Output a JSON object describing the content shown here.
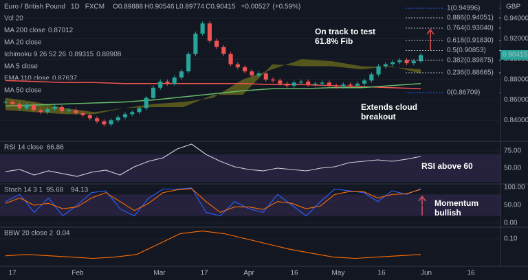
{
  "header": {
    "symbol": "Euro / British Pound",
    "interval": "1D",
    "source": "FXCM",
    "ohlc": [
      {
        "label": "O",
        "value": 0.89888
      },
      {
        "label": "H",
        "value": 0.90546
      },
      {
        "label": "L",
        "value": 0.89774
      },
      {
        "label": "C",
        "value": 0.90415
      }
    ],
    "change": "+0.00527",
    "change_pct": "(+0.59%)",
    "currency": "GBP"
  },
  "legend": [
    {
      "name": "Vol 20",
      "values": [],
      "active": false
    },
    {
      "name": "MA 200 close",
      "values": [
        0.87012
      ],
      "active": true,
      "color": "#f05350"
    },
    {
      "name": "MA 20 close",
      "values": [],
      "active": false
    },
    {
      "name": "Ichimoku 9 26 52 26",
      "values": [
        0.89315,
        0.88908
      ],
      "active": true,
      "color": "#f05350"
    },
    {
      "name": "MA 5 close",
      "values": [],
      "active": false
    },
    {
      "name": "EMA 110 close",
      "values": [
        0.87637
      ],
      "active": true,
      "color": "#26a69a"
    },
    {
      "name": "MA 50 close",
      "values": [],
      "active": false
    }
  ],
  "time_labels": [
    "17",
    "Feb",
    "Mar",
    "17",
    "Apr",
    "16",
    "May",
    "16",
    "Jun",
    "16"
  ],
  "chart_data": [
    {
      "type": "candlestick",
      "ylim": [
        0.82,
        0.958
      ],
      "yticks": [
        {
          "value": 0.94,
          "label": "0.94000"
        },
        {
          "value": 0.92,
          "label": "0.92000"
        },
        {
          "value": 0.9,
          "label": "0.90000"
        },
        {
          "value": 0.88,
          "label": "0.88000"
        },
        {
          "value": 0.86,
          "label": "0.86000"
        },
        {
          "value": 0.84,
          "label": "0.84000"
        }
      ],
      "last_price": {
        "value": 0.90415,
        "label": "0.90415"
      },
      "values": [
        0.858,
        0.856,
        0.852,
        0.855,
        0.85,
        0.848,
        0.851,
        0.853,
        0.849,
        0.85,
        0.847,
        0.845,
        0.842,
        0.839,
        0.836,
        0.84,
        0.843,
        0.846,
        0.848,
        0.852,
        0.862,
        0.872,
        0.878,
        0.876,
        0.882,
        0.888,
        0.905,
        0.925,
        0.935,
        0.918,
        0.912,
        0.905,
        0.895,
        0.892,
        0.888,
        0.884,
        0.886,
        0.88,
        0.879,
        0.876,
        0.874,
        0.877,
        0.878,
        0.875,
        0.876,
        0.877,
        0.874,
        0.873,
        0.875,
        0.874,
        0.876,
        0.879,
        0.885,
        0.893,
        0.895,
        0.897,
        0.899,
        0.896,
        0.898,
        0.904
      ],
      "up_color": "#26a69a",
      "down_color": "#ef5350",
      "lines": [
        {
          "name": "MA 200 close",
          "color": "#f05350",
          "values": [
            0.879,
            0.878,
            0.877,
            0.877,
            0.876,
            0.876,
            0.876,
            0.876,
            0.876,
            0.875,
            0.875,
            0.874,
            0.873,
            0.872,
            0.871
          ]
        },
        {
          "name": "EMA 110 close",
          "color": "#66bb6a",
          "values": [
            0.854,
            0.855,
            0.856,
            0.857,
            0.858,
            0.86,
            0.863,
            0.866,
            0.869,
            0.871,
            0.871,
            0.872,
            0.872,
            0.874,
            0.876
          ]
        }
      ],
      "cloud": {
        "color": "#8c8c1a",
        "span_a": [
          0.862,
          0.858,
          0.852,
          0.848,
          0.852,
          0.856,
          0.858,
          0.862,
          0.88,
          0.89,
          0.9,
          0.898,
          0.893,
          0.892,
          0.89
        ],
        "span_b": [
          0.85,
          0.848,
          0.846,
          0.846,
          0.852,
          0.853,
          0.853,
          0.865,
          0.865,
          0.895,
          0.893,
          0.893,
          0.89,
          0.893,
          0.886
        ]
      },
      "fib_levels": [
        {
          "value": 0.94996,
          "label": "1(0.94996)"
        },
        {
          "value": 0.94051,
          "label": "0.886(0.94051)"
        },
        {
          "value": 0.9304,
          "label": "0.764(0.93040)"
        },
        {
          "value": 0.9183,
          "label": "0.618(0.91830)"
        },
        {
          "value": 0.90853,
          "label": "0.5(0.90853)"
        },
        {
          "value": 0.89875,
          "label": "0.382(0.89875)"
        },
        {
          "value": 0.88665,
          "label": "0.236(0.88665)"
        },
        {
          "value": 0.86709,
          "label": "0(0.86709)"
        }
      ],
      "annotations": [
        "On track to test 61.8% Fib",
        "Extends cloud breakout"
      ]
    },
    {
      "type": "line",
      "title": "RSI 14 close",
      "last": 66.86,
      "ylim": [
        28,
        88
      ],
      "yticks": [
        {
          "value": 75,
          "label": "75.00"
        },
        {
          "value": 50,
          "label": "50.00"
        }
      ],
      "band": [
        30,
        70
      ],
      "series": [
        {
          "name": "RSI",
          "color": "#d1d4dc",
          "values": [
            45,
            48,
            40,
            46,
            42,
            38,
            44,
            47,
            40,
            52,
            60,
            65,
            78,
            85,
            70,
            60,
            52,
            48,
            46,
            50,
            48,
            46,
            50,
            52,
            58,
            60,
            62,
            60,
            63,
            67
          ]
        }
      ],
      "annotations": [
        "RSI above 60"
      ]
    },
    {
      "type": "line",
      "title": "Stoch 14 3 1",
      "last": [
        95.68,
        94.13
      ],
      "ylim": [
        -9.6,
        107.5
      ],
      "yticks": [
        {
          "value": 100,
          "label": "100.00"
        },
        {
          "value": 50,
          "label": "50.00"
        },
        {
          "value": 0,
          "label": "0.00"
        }
      ],
      "band": [
        20,
        80
      ],
      "series": [
        {
          "name": "K",
          "color": "#2962ff",
          "values": [
            60,
            80,
            30,
            70,
            20,
            50,
            85,
            90,
            40,
            20,
            70,
            95,
            95,
            98,
            30,
            20,
            60,
            40,
            30,
            80,
            50,
            20,
            60,
            95,
            90,
            85,
            60,
            90,
            80,
            96
          ]
        },
        {
          "name": "D",
          "color": "#ff6d00",
          "values": [
            55,
            70,
            50,
            55,
            40,
            45,
            70,
            85,
            60,
            35,
            55,
            85,
            93,
            96,
            60,
            30,
            45,
            45,
            38,
            60,
            55,
            40,
            48,
            80,
            88,
            88,
            70,
            80,
            82,
            94
          ]
        }
      ],
      "annotations": [
        "Momentum bullish"
      ]
    },
    {
      "type": "line",
      "title": "BBW 20 close 2",
      "last": 0.04,
      "ylim": [
        0,
        0.142
      ],
      "yticks": [
        {
          "value": 0.1,
          "label": "0.10"
        }
      ],
      "series": [
        {
          "name": "BBW",
          "color": "#ff6d00",
          "values": [
            0.035,
            0.04,
            0.035,
            0.03,
            0.025,
            0.03,
            0.04,
            0.08,
            0.12,
            0.13,
            0.12,
            0.1,
            0.08,
            0.06,
            0.045,
            0.03,
            0.025,
            0.03,
            0.035,
            0.04
          ]
        }
      ]
    }
  ]
}
